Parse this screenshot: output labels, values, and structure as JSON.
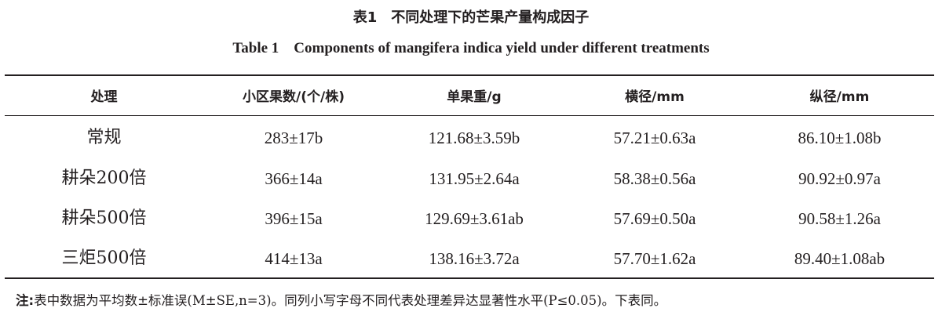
{
  "title_cn": "表1　不同处理下的芒果产量构成因子",
  "title_en": "Table 1　Components of mangifera indica yield under different treatments",
  "table": {
    "headers": [
      "处理",
      "小区果数/(个/株)",
      "单果重/g",
      "横径/mm",
      "纵径/mm"
    ],
    "rows": [
      [
        "常规",
        "283±17b",
        "121.68±3.59b",
        "57.21±0.63a",
        "86.10±1.08b"
      ],
      [
        "耕朵200倍",
        "366±14a",
        "131.95±2.64a",
        "58.38±0.56a",
        "90.92±0.97a"
      ],
      [
        "耕朵500倍",
        "396±15a",
        "129.69±3.61ab",
        "57.69±0.50a",
        "90.58±1.26a"
      ],
      [
        "三炬500倍",
        "414±13a",
        "138.16±3.72a",
        "57.70±1.62a",
        "89.40±1.08ab"
      ]
    ]
  },
  "note": {
    "label": "注:",
    "text": "表中数据为平均数±标准误(M±SE,n=3)。同列小写字母不同代表处理差异达显著性水平(P≤0.05)。下表同。"
  }
}
